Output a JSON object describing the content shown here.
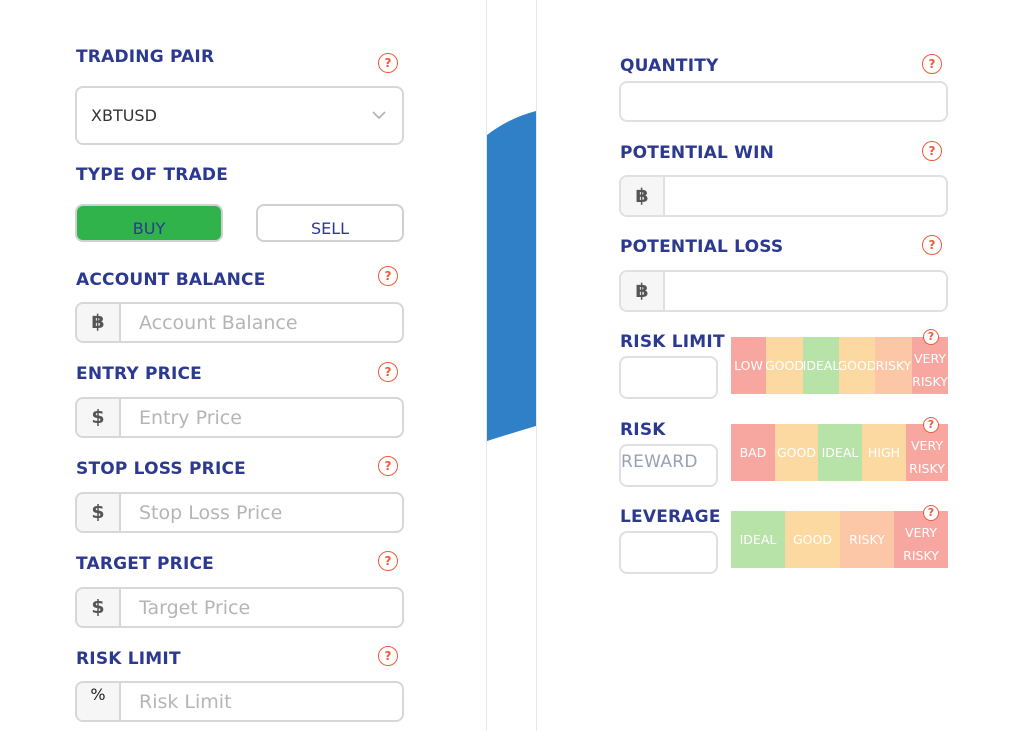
{
  "left": {
    "trading_pair": {
      "label": "TRADING PAIR",
      "value": "XBTUSD"
    },
    "type_of_trade": {
      "label": "TYPE OF TRADE",
      "buy_label": "BUY",
      "sell_label": "SELL"
    },
    "account_balance": {
      "label": "ACCOUNT BALANCE",
      "addon": "฿",
      "placeholder": "Account Balance"
    },
    "entry_price": {
      "label": "ENTRY PRICE",
      "addon": "$",
      "placeholder": "Entry Price"
    },
    "stop_loss_price": {
      "label": "STOP LOSS PRICE",
      "addon": "$",
      "placeholder": "Stop Loss Price"
    },
    "target_price": {
      "label": "TARGET PRICE",
      "addon": "$",
      "placeholder": "Target Price"
    },
    "risk_limit": {
      "label": "RISK LIMIT",
      "addon": "%",
      "placeholder": "Risk Limit"
    }
  },
  "help_glyph": "?",
  "right": {
    "quantity": {
      "label": "QUANTITY"
    },
    "potential_win": {
      "label": "POTENTIAL WIN",
      "addon": "฿"
    },
    "potential_loss": {
      "label": "POTENTIAL LOSS",
      "addon": "฿"
    },
    "risk_limit_meter": {
      "label": "RISK LIMIT",
      "segments": [
        {
          "text": "LOW",
          "color": "#f7a7a0"
        },
        {
          "text": "GOOD",
          "color": "#fbd9a0"
        },
        {
          "text": "IDEAL",
          "color": "#b7e2a8"
        },
        {
          "text": "GOOD",
          "color": "#fbd9a0"
        },
        {
          "text": "RISKY",
          "color": "#fbc7a6"
        },
        {
          "text_top": "VERY",
          "text_bottom": "RISKY",
          "color": "#f7a7a0"
        }
      ]
    },
    "risk_reward_meter": {
      "label": "RISK",
      "sub_label": "REWARD",
      "segments": [
        {
          "text": "BAD",
          "color": "#f7a7a0"
        },
        {
          "text": "GOOD",
          "color": "#fbd9a0"
        },
        {
          "text": "IDEAL",
          "color": "#b7e2a8"
        },
        {
          "text": "HIGH",
          "color": "#fbd9a0"
        },
        {
          "text_top": "VERY",
          "text_bottom": "RISKY",
          "color": "#f7a7a0"
        }
      ]
    },
    "leverage_meter": {
      "label": "LEVERAGE",
      "segments": [
        {
          "text": "IDEAL",
          "color": "#b7e2a8"
        },
        {
          "text": "GOOD",
          "color": "#fbd9a0"
        },
        {
          "text": "RISKY",
          "color": "#fbc7a6"
        },
        {
          "text_top": "VERY",
          "text_bottom": "RISKY",
          "color": "#f7a7a0"
        }
      ]
    }
  },
  "colors": {
    "label": "#2b3990",
    "help": "#ee5a3a",
    "buy": "#2fb34a",
    "accent_blue": "#3080c8"
  }
}
